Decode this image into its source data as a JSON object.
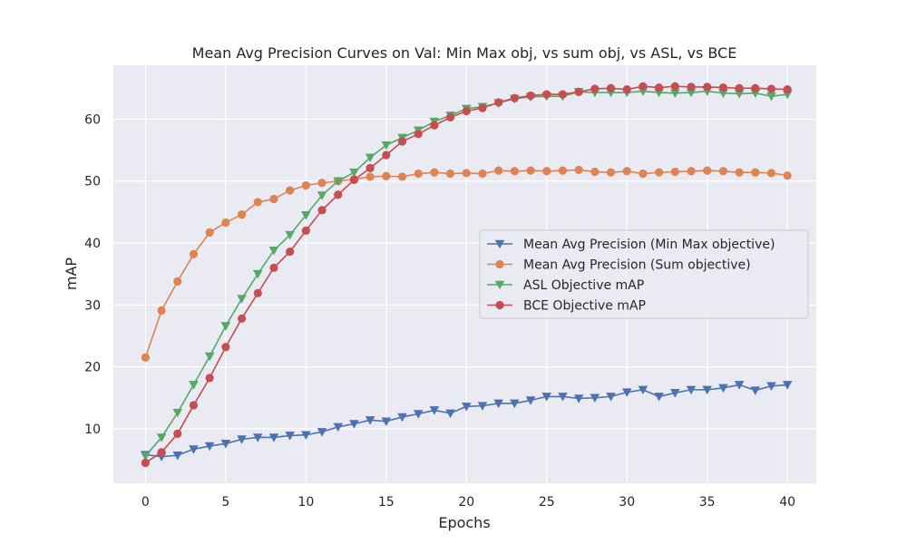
{
  "chart_data": {
    "type": "line",
    "title": "Mean Avg Precision Curves on Val: Min Max obj, vs sum obj, vs ASL, vs BCE",
    "xlabel": "Epochs",
    "ylabel": "mAP",
    "xlim": [
      -2,
      41.8
    ],
    "ylim": [
      1.2,
      68.7
    ],
    "xticks": [
      0,
      5,
      10,
      15,
      20,
      25,
      30,
      35,
      40
    ],
    "yticks": [
      10,
      20,
      30,
      40,
      50,
      60
    ],
    "grid": true,
    "legend_position": "center-right",
    "background": "#eaeaf2",
    "x": [
      0,
      1,
      2,
      3,
      4,
      5,
      6,
      7,
      8,
      9,
      10,
      11,
      12,
      13,
      14,
      15,
      16,
      17,
      18,
      19,
      20,
      21,
      22,
      23,
      24,
      25,
      26,
      27,
      28,
      29,
      30,
      31,
      32,
      33,
      34,
      35,
      36,
      37,
      38,
      39,
      40
    ],
    "series": [
      {
        "name": " Mean Avg Precision (Min Max objective)",
        "color": "#4c72b0",
        "marker": "triangle-down",
        "values": [
          5.8,
          5.5,
          5.7,
          6.7,
          7.2,
          7.6,
          8.3,
          8.6,
          8.6,
          8.9,
          9.0,
          9.5,
          10.3,
          10.8,
          11.4,
          11.2,
          11.9,
          12.4,
          13.0,
          12.5,
          13.6,
          13.7,
          14.1,
          14.1,
          14.6,
          15.2,
          15.2,
          14.9,
          15.0,
          15.2,
          15.9,
          16.3,
          15.2,
          15.8,
          16.3,
          16.3,
          16.6,
          17.1,
          16.2,
          16.9,
          17.1
        ]
      },
      {
        "name": "Mean Avg Precision (Sum objective)",
        "color": "#dd8452",
        "marker": "circle",
        "values": [
          21.5,
          29.1,
          33.8,
          38.2,
          41.7,
          43.3,
          44.6,
          46.6,
          47.1,
          48.5,
          49.3,
          49.7,
          50.0,
          50.3,
          50.7,
          50.8,
          50.7,
          51.2,
          51.4,
          51.2,
          51.3,
          51.2,
          51.7,
          51.6,
          51.7,
          51.6,
          51.7,
          51.8,
          51.5,
          51.4,
          51.6,
          51.2,
          51.4,
          51.5,
          51.6,
          51.7,
          51.6,
          51.4,
          51.4,
          51.3,
          50.9
        ]
      },
      {
        "name": "ASL Objective mAP",
        "color": "#55a868",
        "marker": "triangle-down",
        "values": [
          5.6,
          8.6,
          12.6,
          17.1,
          21.7,
          26.6,
          31.0,
          35.0,
          38.8,
          41.3,
          44.5,
          47.7,
          50.0,
          51.4,
          53.8,
          55.8,
          57.0,
          58.2,
          59.6,
          60.6,
          61.7,
          62.0,
          62.6,
          63.3,
          63.6,
          63.7,
          63.7,
          64.4,
          64.3,
          64.3,
          64.3,
          64.5,
          64.3,
          64.2,
          64.3,
          64.5,
          64.2,
          64.1,
          64.2,
          63.7,
          64.0
        ]
      },
      {
        "name": "BCE Objective mAP",
        "color": "#c44e52",
        "marker": "circle",
        "values": [
          4.5,
          6.2,
          9.2,
          13.8,
          18.2,
          23.2,
          27.8,
          31.9,
          36.0,
          38.6,
          42.0,
          45.3,
          47.8,
          50.2,
          52.1,
          54.2,
          56.4,
          57.6,
          59.0,
          60.3,
          61.3,
          61.8,
          62.7,
          63.4,
          63.8,
          64.0,
          64.0,
          64.4,
          64.9,
          65.0,
          64.8,
          65.3,
          65.1,
          65.3,
          65.2,
          65.2,
          65.1,
          65.0,
          65.0,
          64.9,
          64.8
        ]
      }
    ]
  }
}
